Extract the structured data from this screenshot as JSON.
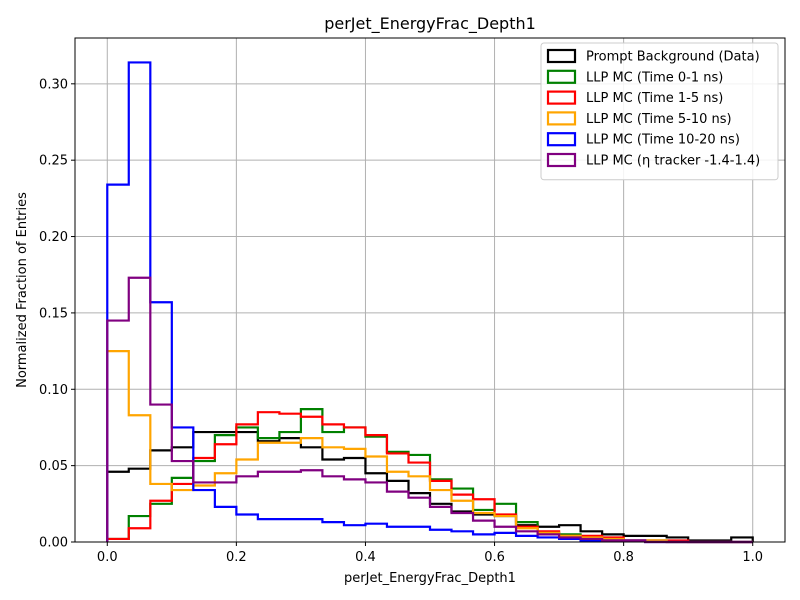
{
  "chart_data": {
    "type": "histogram-step",
    "title": "perJet_EnergyFrac_Depth1",
    "xlabel": "perJet_EnergyFrac_Depth1",
    "ylabel": "Normalized Fraction of Entries",
    "xlim": [
      -0.05,
      1.05
    ],
    "ylim": [
      0,
      0.33
    ],
    "xticks": [
      "0.0",
      "0.2",
      "0.4",
      "0.6",
      "0.8",
      "1.0"
    ],
    "yticks": [
      "0.00",
      "0.05",
      "0.10",
      "0.15",
      "0.20",
      "0.25",
      "0.30"
    ],
    "grid": true,
    "legend_position": "top-right",
    "bin_edges": [
      0.0,
      0.0333,
      0.0667,
      0.1,
      0.1333,
      0.1667,
      0.2,
      0.2333,
      0.2667,
      0.3,
      0.3333,
      0.3667,
      0.4,
      0.4333,
      0.4667,
      0.5,
      0.5333,
      0.5667,
      0.6,
      0.6333,
      0.6667,
      0.7,
      0.7333,
      0.7667,
      0.8,
      0.8333,
      0.8667,
      0.9,
      0.9333,
      0.9667,
      1.0
    ],
    "series": [
      {
        "name": "Prompt Background (Data)",
        "color": "#000000",
        "values": [
          0.046,
          0.048,
          0.06,
          0.062,
          0.072,
          0.072,
          0.072,
          0.066,
          0.068,
          0.062,
          0.054,
          0.055,
          0.045,
          0.04,
          0.032,
          0.025,
          0.02,
          0.018,
          0.017,
          0.011,
          0.01,
          0.011,
          0.007,
          0.005,
          0.004,
          0.004,
          0.003,
          0.001,
          0.001,
          0.003
        ]
      },
      {
        "name": "LLP MC (Time 0-1 ns)",
        "color": "#008000",
        "values": [
          0.002,
          0.017,
          0.025,
          0.042,
          0.053,
          0.07,
          0.075,
          0.068,
          0.072,
          0.087,
          0.072,
          0.075,
          0.069,
          0.059,
          0.057,
          0.041,
          0.035,
          0.021,
          0.025,
          0.013,
          0.006,
          0.005,
          0.003,
          0.002,
          0.001,
          0.001,
          0.0,
          0.0,
          0.0,
          0.0
        ]
      },
      {
        "name": "LLP MC (Time 1-5 ns)",
        "color": "#ff0000",
        "values": [
          0.002,
          0.009,
          0.027,
          0.038,
          0.055,
          0.064,
          0.077,
          0.085,
          0.084,
          0.082,
          0.077,
          0.075,
          0.07,
          0.058,
          0.052,
          0.04,
          0.031,
          0.028,
          0.018,
          0.01,
          0.007,
          0.004,
          0.004,
          0.003,
          0.001,
          0.001,
          0.001,
          0.0,
          0.0,
          0.0
        ]
      },
      {
        "name": "LLP MC (Time 5-10 ns)",
        "color": "#ffa500",
        "values": [
          0.125,
          0.083,
          0.038,
          0.034,
          0.037,
          0.045,
          0.054,
          0.065,
          0.065,
          0.068,
          0.062,
          0.061,
          0.056,
          0.046,
          0.043,
          0.034,
          0.027,
          0.019,
          0.017,
          0.009,
          0.006,
          0.004,
          0.003,
          0.002,
          0.001,
          0.001,
          0.0,
          0.0,
          0.0,
          0.0
        ]
      },
      {
        "name": "LLP MC (Time 10-20 ns)",
        "color": "#0000ff",
        "values": [
          0.234,
          0.314,
          0.157,
          0.075,
          0.034,
          0.023,
          0.018,
          0.015,
          0.015,
          0.015,
          0.013,
          0.011,
          0.012,
          0.01,
          0.01,
          0.008,
          0.007,
          0.005,
          0.006,
          0.004,
          0.003,
          0.002,
          0.001,
          0.001,
          0.001,
          0.0,
          0.0,
          0.0,
          0.0,
          0.0
        ]
      },
      {
        "name": "LLP MC (η tracker -1.4-1.4)",
        "color": "#800080",
        "values": [
          0.145,
          0.173,
          0.09,
          0.053,
          0.039,
          0.039,
          0.043,
          0.046,
          0.046,
          0.047,
          0.043,
          0.041,
          0.039,
          0.033,
          0.029,
          0.023,
          0.019,
          0.014,
          0.01,
          0.007,
          0.005,
          0.003,
          0.002,
          0.001,
          0.001,
          0.0,
          0.0,
          0.0,
          0.0,
          0.0
        ]
      }
    ]
  }
}
